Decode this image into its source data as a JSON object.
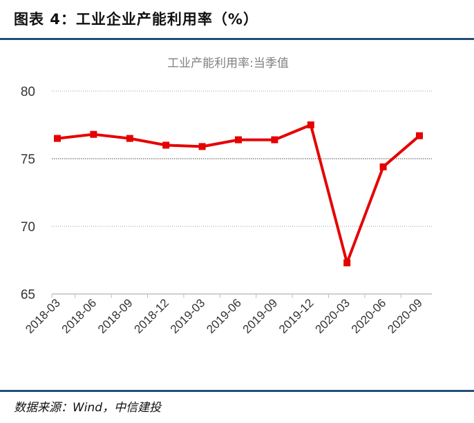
{
  "figure": {
    "title": "图表 4：工业企业产能利用率（%）",
    "source": "数据来源：Wind，中信建投"
  },
  "colors": {
    "line": "#e60000",
    "rule": "#1f4e79",
    "grid": "#999999",
    "axis": "#bfbfbf"
  },
  "chart_data": {
    "type": "line",
    "title": "工业产能利用率:当季值",
    "xlabel": "",
    "ylabel": "",
    "ylim": [
      65,
      80
    ],
    "yticks": [
      65,
      70,
      75,
      80
    ],
    "grid": true,
    "legend": "none",
    "categories": [
      "2018-03",
      "2018-06",
      "2018-09",
      "2018-12",
      "2019-03",
      "2019-06",
      "2019-09",
      "2019-12",
      "2020-03",
      "2020-06",
      "2020-09"
    ],
    "series": [
      {
        "values": [
          76.5,
          76.8,
          76.5,
          76.0,
          75.9,
          76.4,
          76.4,
          77.5,
          67.3,
          74.4,
          76.7
        ]
      }
    ]
  }
}
